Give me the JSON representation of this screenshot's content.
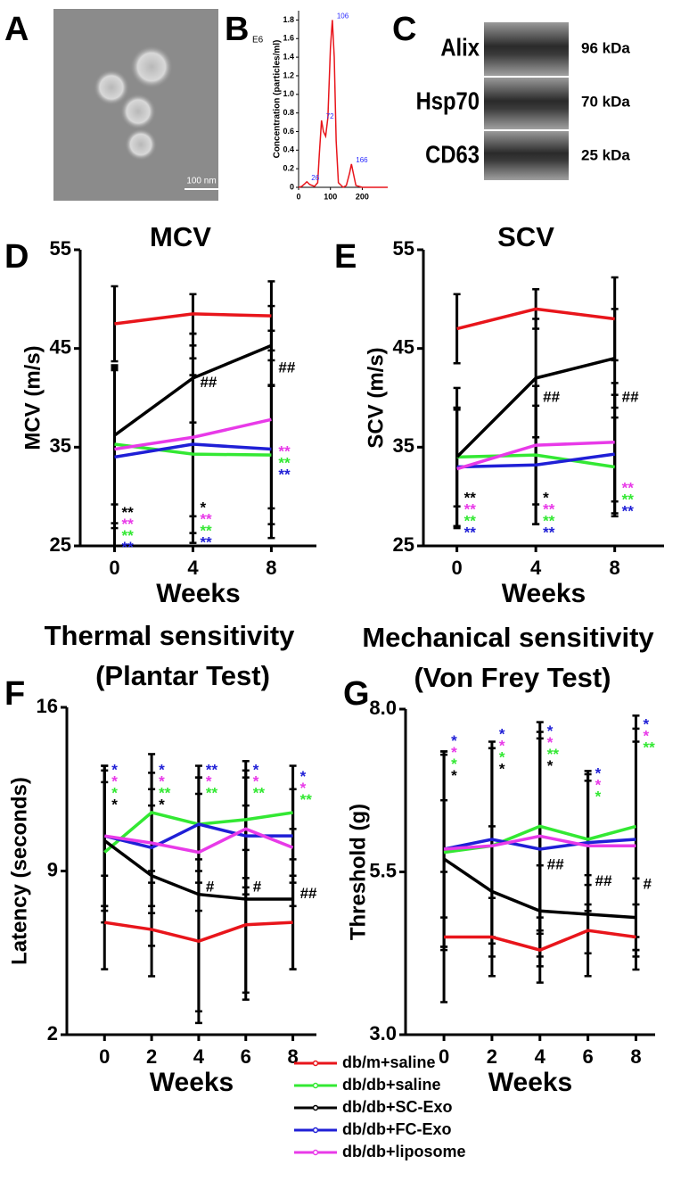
{
  "panel_labels": [
    "A",
    "B",
    "C",
    "D",
    "E",
    "F",
    "G"
  ],
  "panel_a": {
    "scale_bar": "100 nm"
  },
  "panel_c": {
    "bands": [
      {
        "protein": "Alix",
        "size": "96 kDa"
      },
      {
        "protein": "Hsp70",
        "size": "70 kDa"
      },
      {
        "protein": "CD63",
        "size": "25 kDa"
      }
    ]
  },
  "chart_data": [
    {
      "type": "line",
      "ylabel": "Concentration (particles/ml)",
      "y_unit": "E6",
      "color": "#e8151b",
      "x": [
        0,
        10,
        20,
        26,
        35,
        50,
        60,
        65,
        72,
        78,
        85,
        92,
        100,
        106,
        112,
        118,
        125,
        140,
        150,
        160,
        166,
        172,
        180,
        200,
        220,
        250,
        280
      ],
      "values": [
        0,
        0.01,
        0.04,
        0.06,
        0.03,
        0.01,
        0.05,
        0.35,
        0.72,
        0.6,
        0.55,
        0.75,
        1.5,
        1.8,
        1.4,
        0.5,
        0.05,
        0,
        0.02,
        0.15,
        0.25,
        0.15,
        0.02,
        0,
        0,
        0,
        0
      ],
      "peaks": {
        "x": [
          26,
          72,
          106,
          166
        ],
        "y": [
          0.06,
          0.72,
          1.8,
          0.25
        ],
        "color": "#2b2bff"
      },
      "xlim": [
        0,
        280
      ],
      "ylim": [
        0,
        1.9
      ],
      "xticks": [
        0,
        100,
        200
      ],
      "yticks": [
        0,
        0.2,
        0.4,
        0.6,
        0.8,
        {
          "value": 1,
          "label": "1.0"
        },
        1.2,
        1.4,
        1.6,
        1.8
      ]
    },
    {
      "type": "line",
      "title": "MCV",
      "ylabel": "MCV (m/s)",
      "xlabel": "Weeks",
      "x": [
        0,
        4,
        8
      ],
      "xlim": [
        -1.75,
        10.3
      ],
      "ylim": [
        25,
        55
      ],
      "xticks": [
        0,
        4,
        8
      ],
      "yticks": [
        25,
        35,
        45,
        55
      ],
      "series": [
        {
          "color": "#e8151b",
          "values": [
            47.5,
            48.5,
            48.3
          ],
          "errors": [
            3.8,
            2,
            3.5
          ]
        },
        {
          "color": "#33e833",
          "values": [
            35.3,
            34.3,
            34.2
          ],
          "errors": [
            8,
            8,
            7
          ]
        },
        {
          "color": "#000000",
          "values": [
            36.2,
            42,
            45.3
          ],
          "errors": [
            7,
            4.5,
            4
          ]
        },
        {
          "color": "#1f1fd6",
          "values": [
            34,
            35.3,
            34.8
          ],
          "errors": [
            9,
            10,
            9
          ]
        },
        {
          "color": "#e83ae8",
          "values": [
            34.8,
            36,
            37.8
          ],
          "errors": [
            8,
            8,
            9
          ]
        }
      ],
      "annotations": [
        {
          "x": 0,
          "y": 28.3,
          "texts": [
            "**",
            "**",
            "**",
            "**"
          ],
          "colors": [
            "#000000",
            "#e83ae8",
            "#33e833",
            "#1f1fd6"
          ]
        },
        {
          "x": 4,
          "y": 28.8,
          "texts": [
            "*",
            "**",
            "**",
            "**"
          ],
          "colors": [
            "#000000",
            "#e83ae8",
            "#33e833",
            "#1f1fd6"
          ]
        },
        {
          "x": 4,
          "y": 41.5,
          "texts": [
            "##"
          ],
          "colors": [
            "#000000"
          ]
        },
        {
          "x": 8,
          "y": 43,
          "texts": [
            "##"
          ],
          "colors": [
            "#000000"
          ]
        },
        {
          "x": 8,
          "y": 34.5,
          "texts": [
            "**",
            "**",
            "**"
          ],
          "colors": [
            "#e83ae8",
            "#33e833",
            "#1f1fd6"
          ]
        }
      ]
    },
    {
      "type": "line",
      "title": "SCV",
      "ylabel": "SCV (m/s)",
      "xlabel": "Weeks",
      "x": [
        0,
        4,
        8
      ],
      "xlim": [
        -1.7,
        10.5
      ],
      "ylim": [
        25,
        55
      ],
      "xticks": [
        0,
        4,
        8
      ],
      "yticks": [
        25,
        35,
        45,
        55
      ],
      "series": [
        {
          "color": "#e8151b",
          "values": [
            47,
            49,
            48
          ],
          "errors": [
            3.5,
            2,
            4.2
          ]
        },
        {
          "color": "#33e833",
          "values": [
            34,
            34.2,
            33
          ],
          "errors": [
            7,
            7,
            5
          ]
        },
        {
          "color": "#000000",
          "values": [
            34,
            42,
            44
          ],
          "errors": [
            5,
            6,
            5
          ]
        },
        {
          "color": "#1f1fd6",
          "values": [
            33,
            33.2,
            34.3
          ],
          "errors": [
            6,
            6,
            6
          ]
        },
        {
          "color": "#e83ae8",
          "values": [
            32.8,
            35.2,
            35.5
          ],
          "errors": [
            6,
            6,
            6
          ]
        }
      ],
      "annotations": [
        {
          "x": 0,
          "y": 29.8,
          "texts": [
            "**",
            "**",
            "**",
            "**"
          ],
          "colors": [
            "#000000",
            "#e83ae8",
            "#33e833",
            "#1f1fd6"
          ]
        },
        {
          "x": 4,
          "y": 29.8,
          "texts": [
            "*",
            "**",
            "**",
            "**"
          ],
          "colors": [
            "#000000",
            "#e83ae8",
            "#33e833",
            "#1f1fd6"
          ]
        },
        {
          "x": 4,
          "y": 40,
          "texts": [
            "##"
          ],
          "colors": [
            "#000000"
          ]
        },
        {
          "x": 8,
          "y": 40,
          "texts": [
            "##"
          ],
          "colors": [
            "#000000"
          ]
        },
        {
          "x": 8,
          "y": 30.8,
          "texts": [
            "**",
            "**",
            "**"
          ],
          "colors": [
            "#e83ae8",
            "#33e833",
            "#1f1fd6"
          ]
        }
      ]
    },
    {
      "type": "line",
      "title": "Thermal sensitivity",
      "subtitle": "(Plantar Test)",
      "ylabel": "Latency (seconds)",
      "xlabel": "Weeks",
      "x": [
        0,
        2,
        4,
        6,
        8
      ],
      "xlim": [
        -1.6,
        9
      ],
      "ylim": [
        2,
        16
      ],
      "xticks": [
        0,
        2,
        4,
        6,
        8
      ],
      "yticks": [
        2,
        9,
        16
      ],
      "series": [
        {
          "color": "#e8151b",
          "values": [
            6.8,
            6.5,
            6,
            6.7,
            6.8
          ],
          "errors": [
            2,
            2,
            3.5,
            3.2,
            2
          ]
        },
        {
          "color": "#33e833",
          "values": [
            9.8,
            11.5,
            11,
            11.2,
            11.5
          ],
          "errors": [
            3,
            2.5,
            2.5,
            2.5,
            2
          ]
        },
        {
          "color": "#000000",
          "values": [
            10.3,
            8.8,
            8,
            7.8,
            7.8
          ],
          "errors": [
            3,
            3,
            5,
            4,
            3
          ]
        },
        {
          "color": "#1f1fd6",
          "values": [
            10.5,
            10,
            11,
            10.5,
            10.5
          ],
          "errors": [
            3,
            2.5,
            2,
            2.5,
            2
          ]
        },
        {
          "color": "#e83ae8",
          "values": [
            10.5,
            10.2,
            9.8,
            10.8,
            10
          ],
          "errors": [
            3,
            3,
            2.5,
            2.5,
            2.5
          ]
        }
      ],
      "annotations": [
        {
          "x": 0,
          "y": 13.3,
          "texts": [
            "*",
            "*",
            "*",
            "*"
          ],
          "colors": [
            "#1f1fd6",
            "#e83ae8",
            "#33e833",
            "#000000"
          ]
        },
        {
          "x": 2,
          "y": 13.3,
          "texts": [
            "*",
            "*",
            "**",
            "*"
          ],
          "colors": [
            "#1f1fd6",
            "#e83ae8",
            "#33e833",
            "#000000"
          ]
        },
        {
          "x": 4,
          "y": 13.3,
          "texts": [
            "**",
            "*",
            "**"
          ],
          "colors": [
            "#1f1fd6",
            "#e83ae8",
            "#33e833"
          ]
        },
        {
          "x": 6,
          "y": 13.3,
          "texts": [
            "*",
            "*",
            "**"
          ],
          "colors": [
            "#1f1fd6",
            "#e83ae8",
            "#33e833"
          ]
        },
        {
          "x": 8,
          "y": 13,
          "texts": [
            "*",
            "*",
            "**"
          ],
          "colors": [
            "#1f1fd6",
            "#e83ae8",
            "#33e833"
          ]
        },
        {
          "x": 4,
          "y": 8.3,
          "texts": [
            "#"
          ],
          "colors": [
            "#000000"
          ]
        },
        {
          "x": 6,
          "y": 8.3,
          "texts": [
            "#"
          ],
          "colors": [
            "#000000"
          ]
        },
        {
          "x": 8,
          "y": 8,
          "texts": [
            "##"
          ],
          "colors": [
            "#000000"
          ]
        }
      ]
    },
    {
      "type": "line",
      "title": "Mechanical sensitivity",
      "subtitle": "(Von Frey Test)",
      "ylabel": "Threshold (g)",
      "xlabel": "Weeks",
      "x": [
        0,
        2,
        4,
        6,
        8
      ],
      "xlim": [
        -1.6,
        8.8
      ],
      "ylim": [
        3,
        8
      ],
      "xticks": [
        0,
        2,
        4,
        6,
        8
      ],
      "yticks": [
        {
          "value": 3,
          "label": "3.0"
        },
        5.5,
        {
          "value": 8,
          "label": "8.0"
        }
      ],
      "series": [
        {
          "name": "db/m+saline",
          "color": "#e8151b",
          "values": [
            4.5,
            4.5,
            4.3,
            4.6,
            4.5
          ],
          "errors": [
            1,
            0.6,
            0.5,
            0.7,
            0.5
          ]
        },
        {
          "name": "db/db+saline",
          "color": "#33e833",
          "values": [
            5.8,
            5.9,
            6.2,
            6,
            6.2
          ],
          "errors": [
            1.5,
            1.5,
            1.6,
            1,
            1.7
          ]
        },
        {
          "name": "db/db+SC-Exo",
          "color": "#000000",
          "values": [
            5.7,
            5.2,
            4.9,
            4.85,
            4.8
          ],
          "errors": [
            0.9,
            1,
            0.7,
            0.6,
            0.6
          ]
        },
        {
          "name": "db/db+FC-Exo",
          "color": "#1f1fd6",
          "values": [
            5.85,
            6,
            5.85,
            5.95,
            6
          ],
          "errors": [
            1.5,
            1.5,
            1.8,
            1.1,
            1.7
          ]
        },
        {
          "name": "db/db+liposome",
          "color": "#e83ae8",
          "values": [
            5.85,
            5.9,
            6.05,
            5.9,
            5.9
          ],
          "errors": [
            1.5,
            1.5,
            1.5,
            1,
            1.6
          ]
        }
      ],
      "annotations": [
        {
          "x": 0,
          "y": 7.5,
          "texts": [
            "*",
            "*",
            "*",
            "*"
          ],
          "colors": [
            "#1f1fd6",
            "#e83ae8",
            "#33e833",
            "#000000"
          ]
        },
        {
          "x": 2,
          "y": 7.6,
          "texts": [
            "*",
            "*",
            "*",
            "*"
          ],
          "colors": [
            "#1f1fd6",
            "#e83ae8",
            "#33e833",
            "#000000"
          ]
        },
        {
          "x": 4,
          "y": 7.65,
          "texts": [
            "*",
            "*",
            "**",
            "*"
          ],
          "colors": [
            "#1f1fd6",
            "#e83ae8",
            "#33e833",
            "#000000"
          ]
        },
        {
          "x": 6,
          "y": 7,
          "texts": [
            "*",
            "*",
            "*"
          ],
          "colors": [
            "#1f1fd6",
            "#e83ae8",
            "#33e833"
          ]
        },
        {
          "x": 8,
          "y": 7.75,
          "texts": [
            "*",
            "*",
            "**"
          ],
          "colors": [
            "#1f1fd6",
            "#e83ae8",
            "#33e833"
          ]
        },
        {
          "x": 4,
          "y": 5.6,
          "texts": [
            "##"
          ],
          "colors": [
            "#000000"
          ]
        },
        {
          "x": 6,
          "y": 5.35,
          "texts": [
            "##"
          ],
          "colors": [
            "#000000"
          ]
        },
        {
          "x": 8,
          "y": 5.3,
          "texts": [
            "#"
          ],
          "colors": [
            "#000000"
          ]
        }
      ]
    }
  ]
}
